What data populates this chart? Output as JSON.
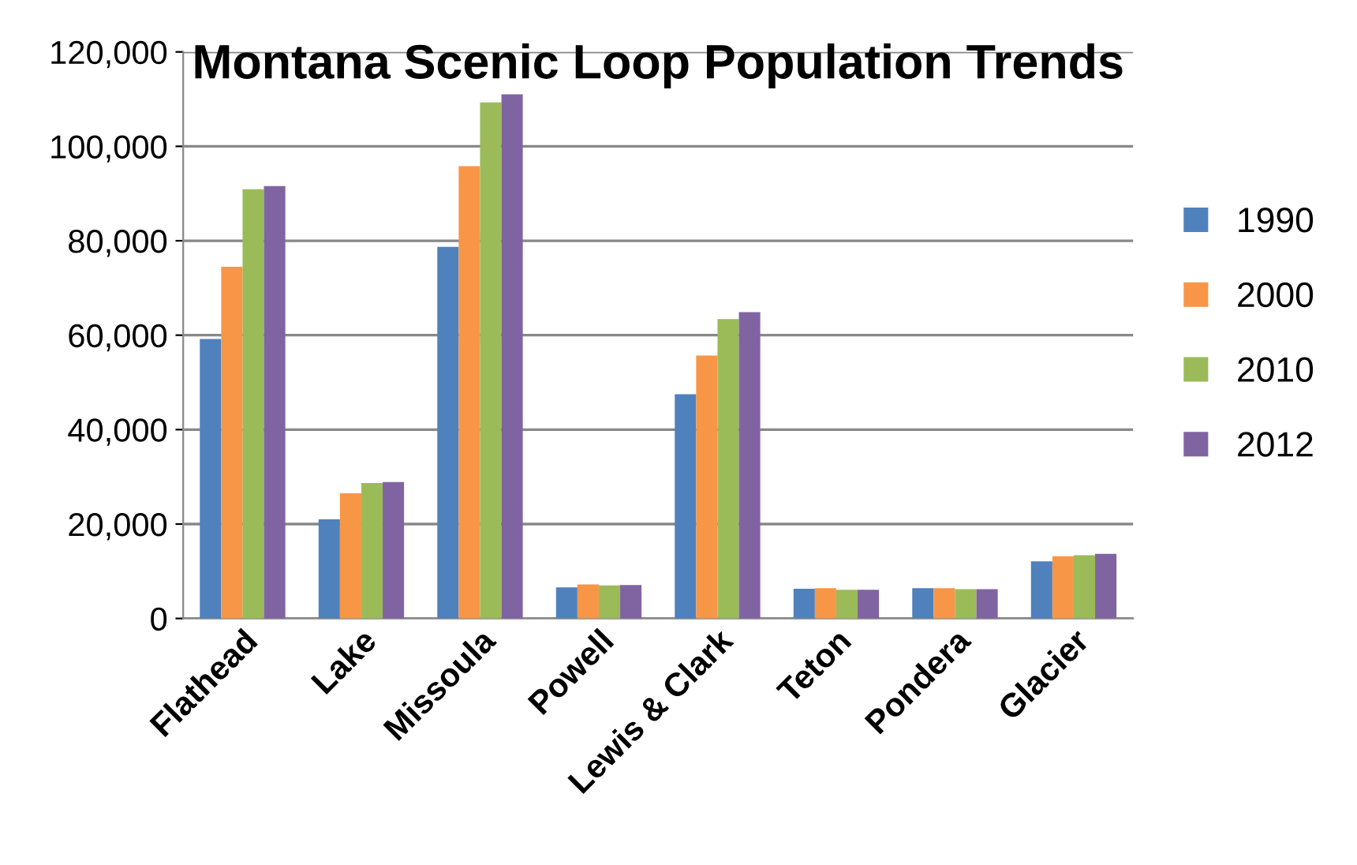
{
  "chart_data": {
    "type": "bar",
    "title": "Montana Scenic Loop Population Trends",
    "categories": [
      "Flathead",
      "Lake",
      "Missoula",
      "Powell",
      "Lewis & Clark",
      "Teton",
      "Pondera",
      "Glacier"
    ],
    "series": [
      {
        "name": "1990",
        "color": "#4f81bd",
        "values": [
          59200,
          21000,
          78700,
          6600,
          47500,
          6300,
          6400,
          12100
        ]
      },
      {
        "name": "2000",
        "color": "#f79646",
        "values": [
          74500,
          26500,
          95800,
          7200,
          55700,
          6400,
          6400,
          13200
        ]
      },
      {
        "name": "2010",
        "color": "#9bbb59",
        "values": [
          90900,
          28700,
          109300,
          7000,
          63400,
          6100,
          6200,
          13400
        ]
      },
      {
        "name": "2012",
        "color": "#8064a2",
        "values": [
          91600,
          28900,
          111000,
          7100,
          64900,
          6100,
          6200,
          13700
        ]
      }
    ],
    "ylim": [
      0,
      120000
    ],
    "yticks": [
      {
        "value": 0,
        "label": "0"
      },
      {
        "value": 20000,
        "label": "20,000"
      },
      {
        "value": 40000,
        "label": "40,000"
      },
      {
        "value": 60000,
        "label": "60,000"
      },
      {
        "value": 80000,
        "label": "80,000"
      },
      {
        "value": 100000,
        "label": "100,000"
      },
      {
        "value": 120000,
        "label": "120,000"
      }
    ],
    "grid": "y",
    "legend": "right"
  }
}
